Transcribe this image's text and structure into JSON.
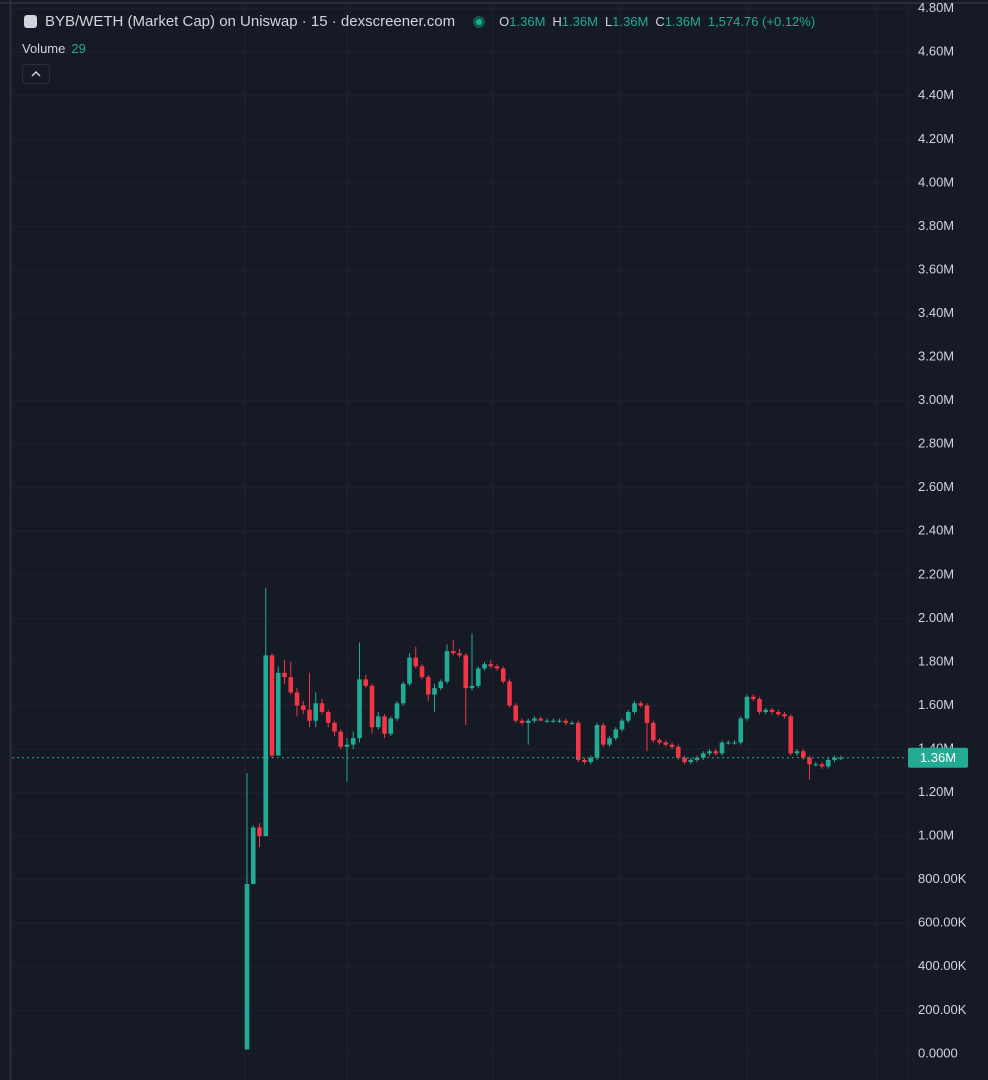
{
  "chart_data": {
    "type": "candlestick",
    "title": "BYB/WETH (Market Cap) on Uniswap · 15 · dexscreener.com",
    "ohlc": [
      {
        "name": "O",
        "text": "1.36M"
      },
      {
        "name": "H",
        "text": "1.36M"
      },
      {
        "name": "L",
        "text": "1.36M"
      },
      {
        "name": "C",
        "text": "1.36M"
      }
    ],
    "change": "1,574.76 (+0.12%)",
    "volume": {
      "name": "Volume",
      "value": 29
    },
    "last_price": {
      "value": 1360000,
      "label": "1.36M"
    },
    "up_color": "#22ab94",
    "down_color": "#f23645",
    "grid": true,
    "ylim": [
      -120000,
      4840000
    ],
    "yticks": [
      {
        "value": 0,
        "label": "0.0000"
      },
      {
        "value": 200000,
        "label": "200.00K"
      },
      {
        "value": 400000,
        "label": "400.00K"
      },
      {
        "value": 600000,
        "label": "600.00K"
      },
      {
        "value": 800000,
        "label": "800.00K"
      },
      {
        "value": 1000000,
        "label": "1.00M"
      },
      {
        "value": 1200000,
        "label": "1.20M"
      },
      {
        "value": 1400000,
        "label": "1.40M"
      },
      {
        "value": 1600000,
        "label": "1.60M"
      },
      {
        "value": 1800000,
        "label": "1.80M"
      },
      {
        "value": 2000000,
        "label": "2.00M"
      },
      {
        "value": 2200000,
        "label": "2.20M"
      },
      {
        "value": 2400000,
        "label": "2.40M"
      },
      {
        "value": 2600000,
        "label": "2.60M"
      },
      {
        "value": 2800000,
        "label": "2.80M"
      },
      {
        "value": 3000000,
        "label": "3.00M"
      },
      {
        "value": 3200000,
        "label": "3.20M"
      },
      {
        "value": 3400000,
        "label": "3.40M"
      },
      {
        "value": 3600000,
        "label": "3.60M"
      },
      {
        "value": 3800000,
        "label": "3.80M"
      },
      {
        "value": 4000000,
        "label": "4.00M"
      },
      {
        "value": 4200000,
        "label": "4.20M"
      },
      {
        "value": 4400000,
        "label": "4.40M"
      },
      {
        "value": 4600000,
        "label": "4.60M"
      },
      {
        "value": 4800000,
        "label": "4.80M"
      }
    ],
    "open": [
      20000,
      780000,
      1040000,
      1000000,
      1830000,
      1370000,
      1750000,
      1730000,
      1660000,
      1600000,
      1580000,
      1530000,
      1610000,
      1570000,
      1520000,
      1480000,
      1410000,
      1420000,
      1450000,
      1720000,
      1690000,
      1500000,
      1550000,
      1470000,
      1540000,
      1610000,
      1700000,
      1820000,
      1780000,
      1730000,
      1650000,
      1680000,
      1710000,
      1850000,
      1840000,
      1830000,
      1680000,
      1690000,
      1770000,
      1790000,
      1780000,
      1770000,
      1710000,
      1600000,
      1530000,
      1520000,
      1530000,
      1540000,
      1530000,
      1530000,
      1530000,
      1530000,
      1520000,
      1520000,
      1350000,
      1340000,
      1360000,
      1510000,
      1420000,
      1450000,
      1490000,
      1530000,
      1570000,
      1610000,
      1600000,
      1520000,
      1440000,
      1430000,
      1420000,
      1410000,
      1360000,
      1340000,
      1350000,
      1360000,
      1380000,
      1390000,
      1380000,
      1430000,
      1430000,
      1430000,
      1540000,
      1640000,
      1630000,
      1570000,
      1580000,
      1570000,
      1560000,
      1550000,
      1380000,
      1390000,
      1360000,
      1330000,
      1330000,
      1320000,
      1350000,
      1360000
    ],
    "high": [
      1290000,
      1050000,
      1060000,
      2140000,
      1840000,
      1780000,
      1810000,
      1800000,
      1680000,
      1620000,
      1750000,
      1660000,
      1630000,
      1580000,
      1530000,
      1490000,
      1450000,
      1480000,
      1890000,
      1740000,
      1700000,
      1570000,
      1560000,
      1550000,
      1620000,
      1710000,
      1840000,
      1870000,
      1790000,
      1740000,
      1700000,
      1720000,
      1880000,
      1900000,
      1860000,
      1840000,
      1930000,
      1780000,
      1800000,
      1810000,
      1790000,
      1780000,
      1720000,
      1610000,
      1540000,
      1540000,
      1550000,
      1550000,
      1540000,
      1540000,
      1540000,
      1540000,
      1530000,
      1530000,
      1360000,
      1370000,
      1520000,
      1520000,
      1460000,
      1500000,
      1540000,
      1580000,
      1620000,
      1620000,
      1610000,
      1530000,
      1450000,
      1440000,
      1430000,
      1420000,
      1370000,
      1360000,
      1370000,
      1390000,
      1400000,
      1400000,
      1440000,
      1440000,
      1440000,
      1550000,
      1650000,
      1650000,
      1640000,
      1590000,
      1590000,
      1580000,
      1570000,
      1560000,
      1400000,
      1400000,
      1370000,
      1340000,
      1340000,
      1360000,
      1370000,
      1370000
    ],
    "low": [
      20000,
      780000,
      950000,
      1000000,
      1360000,
      1370000,
      1700000,
      1650000,
      1550000,
      1560000,
      1500000,
      1500000,
      1560000,
      1500000,
      1460000,
      1400000,
      1250000,
      1400000,
      1430000,
      1680000,
      1470000,
      1490000,
      1450000,
      1460000,
      1530000,
      1600000,
      1690000,
      1770000,
      1720000,
      1620000,
      1570000,
      1670000,
      1700000,
      1830000,
      1820000,
      1510000,
      1670000,
      1680000,
      1760000,
      1770000,
      1760000,
      1700000,
      1590000,
      1520000,
      1510000,
      1420000,
      1520000,
      1530000,
      1520000,
      1520000,
      1520000,
      1510000,
      1510000,
      1340000,
      1330000,
      1330000,
      1350000,
      1410000,
      1410000,
      1440000,
      1480000,
      1520000,
      1560000,
      1590000,
      1390000,
      1430000,
      1420000,
      1410000,
      1400000,
      1350000,
      1330000,
      1330000,
      1340000,
      1350000,
      1370000,
      1370000,
      1370000,
      1420000,
      1420000,
      1420000,
      1530000,
      1620000,
      1560000,
      1560000,
      1560000,
      1550000,
      1540000,
      1370000,
      1370000,
      1350000,
      1260000,
      1320000,
      1310000,
      1310000,
      1340000,
      1350000
    ],
    "close": [
      780000,
      1040000,
      1000000,
      1830000,
      1370000,
      1750000,
      1730000,
      1660000,
      1600000,
      1580000,
      1530000,
      1610000,
      1570000,
      1520000,
      1480000,
      1410000,
      1420000,
      1450000,
      1720000,
      1690000,
      1500000,
      1550000,
      1470000,
      1540000,
      1610000,
      1700000,
      1820000,
      1780000,
      1730000,
      1650000,
      1680000,
      1710000,
      1850000,
      1840000,
      1830000,
      1680000,
      1690000,
      1770000,
      1790000,
      1780000,
      1770000,
      1710000,
      1600000,
      1530000,
      1520000,
      1530000,
      1540000,
      1530000,
      1530000,
      1530000,
      1530000,
      1520000,
      1520000,
      1350000,
      1340000,
      1360000,
      1510000,
      1420000,
      1450000,
      1490000,
      1530000,
      1570000,
      1610000,
      1600000,
      1520000,
      1440000,
      1430000,
      1420000,
      1410000,
      1360000,
      1340000,
      1350000,
      1360000,
      1380000,
      1390000,
      1380000,
      1430000,
      1430000,
      1430000,
      1540000,
      1640000,
      1630000,
      1570000,
      1580000,
      1570000,
      1560000,
      1550000,
      1380000,
      1390000,
      1360000,
      1330000,
      1330000,
      1320000,
      1350000,
      1360000,
      1360000
    ]
  }
}
